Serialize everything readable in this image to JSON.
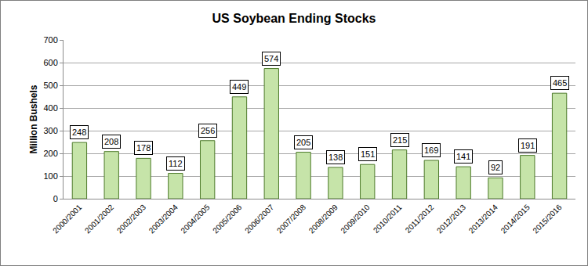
{
  "chart_data": {
    "type": "bar",
    "title": "US Soybean Ending Stocks",
    "y_label": "Million Bushels",
    "categories": [
      "2000/2001",
      "2001/2002",
      "2002/2003",
      "2003/2004",
      "2004/2005",
      "2005/2006",
      "2006/2007",
      "2007/2008",
      "2008/2009",
      "2009/2010",
      "2010/2011",
      "2011/2012",
      "2012/2013",
      "2013/2014",
      "2014/2015",
      "2015/2016"
    ],
    "values": [
      248,
      208,
      178,
      112,
      256,
      449,
      574,
      205,
      138,
      151,
      215,
      169,
      141,
      92,
      191,
      465
    ],
    "color": "#c6e4a9",
    "ylim": [
      0,
      700
    ],
    "yticks": [
      0,
      100,
      200,
      300,
      400,
      500,
      600,
      700
    ],
    "grid": true,
    "data_labels": true
  }
}
